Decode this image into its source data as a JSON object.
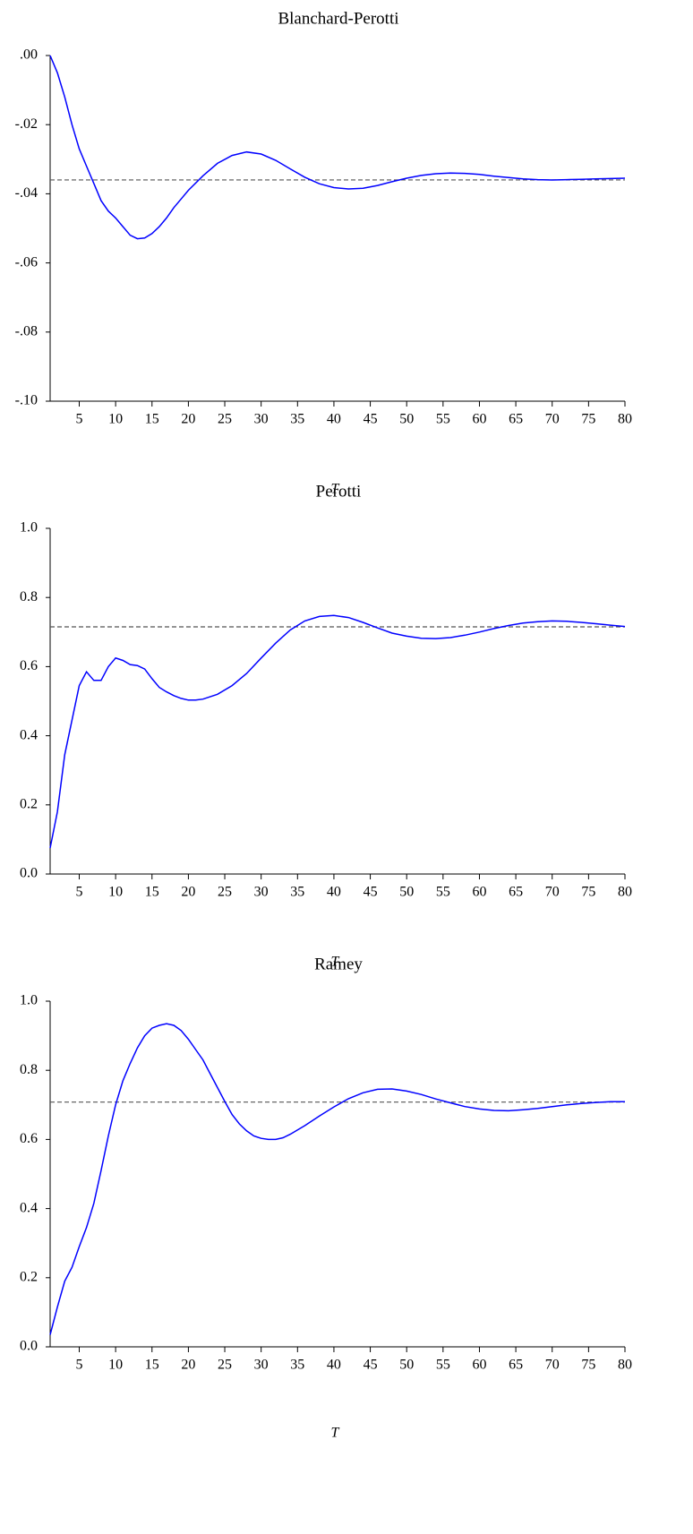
{
  "chart_data": [
    {
      "type": "line",
      "title": "Blanchard-Perotti",
      "xlabel": "T",
      "ylabel": "",
      "xlim": [
        1,
        80
      ],
      "ylim": [
        -0.1,
        0.0
      ],
      "xticks": [
        5,
        10,
        15,
        20,
        25,
        30,
        35,
        40,
        45,
        50,
        55,
        60,
        65,
        70,
        75,
        80
      ],
      "xtick_labels": [
        "5",
        "10",
        "15",
        "20",
        "25",
        "30",
        "35",
        "40",
        "45",
        "50",
        "55",
        "60",
        "65",
        "70",
        "75",
        "80"
      ],
      "yticks": [
        0.0,
        -0.02,
        -0.04,
        -0.06,
        -0.08,
        -0.1
      ],
      "ytick_labels": [
        ".00",
        "-.02",
        "-.04",
        "-.06",
        "-.08",
        "-.10"
      ],
      "reference_line": -0.036,
      "colors": {
        "series": "#0000ff",
        "reference": "#555555"
      },
      "series": [
        {
          "x": [
            1,
            2,
            3,
            4,
            5,
            6,
            7,
            8,
            9,
            10,
            11,
            12,
            13,
            14,
            15,
            16,
            17,
            18,
            19,
            20,
            22,
            24,
            26,
            28,
            30,
            32,
            34,
            36,
            38,
            40,
            42,
            44,
            46,
            48,
            50,
            52,
            54,
            56,
            58,
            60,
            62,
            64,
            66,
            68,
            70,
            72,
            74,
            76,
            78,
            80
          ],
          "values": [
            0.0,
            -0.005,
            -0.012,
            -0.02,
            -0.027,
            -0.032,
            -0.037,
            -0.042,
            -0.045,
            -0.047,
            -0.0495,
            -0.052,
            -0.053,
            -0.0528,
            -0.0515,
            -0.0495,
            -0.047,
            -0.044,
            -0.0415,
            -0.039,
            -0.0348,
            -0.0312,
            -0.0289,
            -0.0279,
            -0.0285,
            -0.0303,
            -0.0328,
            -0.0352,
            -0.0371,
            -0.0382,
            -0.0386,
            -0.0384,
            -0.0376,
            -0.0365,
            -0.0355,
            -0.0347,
            -0.0342,
            -0.034,
            -0.0341,
            -0.0344,
            -0.0349,
            -0.0353,
            -0.0357,
            -0.0359,
            -0.036,
            -0.0359,
            -0.0358,
            -0.0357,
            -0.0356,
            -0.0355
          ]
        }
      ]
    },
    {
      "type": "line",
      "title": "Perotti",
      "xlabel": "T",
      "ylabel": "",
      "xlim": [
        1,
        80
      ],
      "ylim": [
        0.0,
        1.0
      ],
      "xticks": [
        5,
        10,
        15,
        20,
        25,
        30,
        35,
        40,
        45,
        50,
        55,
        60,
        65,
        70,
        75,
        80
      ],
      "xtick_labels": [
        "5",
        "10",
        "15",
        "20",
        "25",
        "30",
        "35",
        "40",
        "45",
        "50",
        "55",
        "60",
        "65",
        "70",
        "75",
        "80"
      ],
      "yticks": [
        0.0,
        0.2,
        0.4,
        0.6,
        0.8,
        1.0
      ],
      "ytick_labels": [
        "0.0",
        "0.2",
        "0.4",
        "0.6",
        "0.8",
        "1.0"
      ],
      "reference_line": 0.715,
      "colors": {
        "series": "#0000ff",
        "reference": "#555555"
      },
      "series": [
        {
          "x": [
            1,
            2,
            3,
            4,
            5,
            6,
            7,
            8,
            9,
            10,
            11,
            12,
            13,
            14,
            15,
            16,
            17,
            18,
            19,
            20,
            21,
            22,
            24,
            26,
            28,
            30,
            32,
            34,
            36,
            38,
            40,
            42,
            44,
            46,
            48,
            50,
            52,
            54,
            56,
            58,
            60,
            62,
            64,
            66,
            68,
            70,
            72,
            74,
            76,
            78,
            80
          ],
          "values": [
            0.075,
            0.18,
            0.345,
            0.445,
            0.545,
            0.585,
            0.56,
            0.56,
            0.6,
            0.625,
            0.618,
            0.606,
            0.603,
            0.593,
            0.565,
            0.54,
            0.527,
            0.516,
            0.508,
            0.503,
            0.503,
            0.506,
            0.52,
            0.545,
            0.58,
            0.625,
            0.668,
            0.706,
            0.732,
            0.745,
            0.748,
            0.742,
            0.728,
            0.712,
            0.697,
            0.688,
            0.682,
            0.681,
            0.684,
            0.691,
            0.7,
            0.71,
            0.719,
            0.726,
            0.73,
            0.732,
            0.731,
            0.728,
            0.724,
            0.72,
            0.716
          ]
        }
      ]
    },
    {
      "type": "line",
      "title": "Ramey",
      "xlabel": "T",
      "ylabel": "",
      "xlim": [
        1,
        80
      ],
      "ylim": [
        0.0,
        1.0
      ],
      "xticks": [
        5,
        10,
        15,
        20,
        25,
        30,
        35,
        40,
        45,
        50,
        55,
        60,
        65,
        70,
        75,
        80
      ],
      "xtick_labels": [
        "5",
        "10",
        "15",
        "20",
        "25",
        "30",
        "35",
        "40",
        "45",
        "50",
        "55",
        "60",
        "65",
        "70",
        "75",
        "80"
      ],
      "yticks": [
        0.0,
        0.2,
        0.4,
        0.6,
        0.8,
        1.0
      ],
      "ytick_labels": [
        "0.0",
        "0.2",
        "0.4",
        "0.6",
        "0.8",
        "1.0"
      ],
      "reference_line": 0.708,
      "colors": {
        "series": "#0000ff",
        "reference": "#555555"
      },
      "series": [
        {
          "x": [
            1,
            2,
            3,
            4,
            5,
            6,
            7,
            8,
            9,
            10,
            11,
            12,
            13,
            14,
            15,
            16,
            17,
            18,
            19,
            20,
            21,
            22,
            23,
            24,
            25,
            26,
            27,
            28,
            29,
            30,
            31,
            32,
            33,
            34,
            36,
            38,
            40,
            42,
            44,
            46,
            48,
            50,
            52,
            54,
            56,
            58,
            60,
            62,
            64,
            66,
            68,
            70,
            72,
            74,
            76,
            78,
            80
          ],
          "values": [
            0.035,
            0.115,
            0.19,
            0.23,
            0.29,
            0.345,
            0.415,
            0.51,
            0.61,
            0.7,
            0.77,
            0.82,
            0.865,
            0.9,
            0.922,
            0.93,
            0.935,
            0.93,
            0.915,
            0.89,
            0.86,
            0.83,
            0.79,
            0.75,
            0.71,
            0.672,
            0.645,
            0.625,
            0.61,
            0.603,
            0.6,
            0.6,
            0.605,
            0.615,
            0.64,
            0.668,
            0.694,
            0.718,
            0.735,
            0.745,
            0.746,
            0.74,
            0.73,
            0.717,
            0.706,
            0.695,
            0.688,
            0.684,
            0.683,
            0.686,
            0.69,
            0.695,
            0.7,
            0.704,
            0.707,
            0.709,
            0.709
          ]
        }
      ]
    }
  ]
}
